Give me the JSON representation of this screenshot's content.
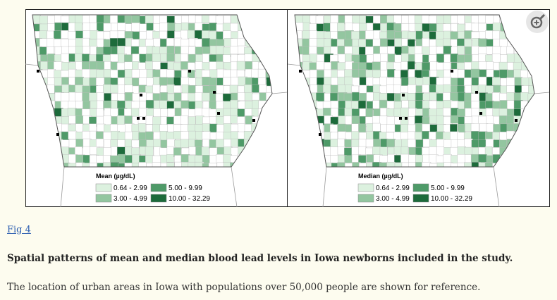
{
  "figure": {
    "panels": [
      {
        "legend_title": "Mean (µg/dL)",
        "legend": [
          {
            "label": "0.64 - 2.99",
            "color": "#dcf1df"
          },
          {
            "label": "5.00 - 9.99",
            "color": "#4e9a68"
          },
          {
            "label": "3.00 - 4.99",
            "color": "#93c6a0"
          },
          {
            "label": "10.00 - 32.29",
            "color": "#1d6b3b"
          }
        ]
      },
      {
        "legend_title": "Median (µg/dL)",
        "legend": [
          {
            "label": "0.64 - 2.99",
            "color": "#dcf1df"
          },
          {
            "label": "5.00 - 9.99",
            "color": "#4e9a68"
          },
          {
            "label": "3.00 - 4.99",
            "color": "#93c6a0"
          },
          {
            "label": "10.00 - 32.29",
            "color": "#1d6b3b"
          }
        ]
      }
    ]
  },
  "link": "Fig 4",
  "caption_title": "Spatial patterns of mean and median blood lead levels in Iowa newborns included in the study.",
  "caption_text": "The location of urban areas in Iowa with populations over 50,000 people are shown for reference."
}
